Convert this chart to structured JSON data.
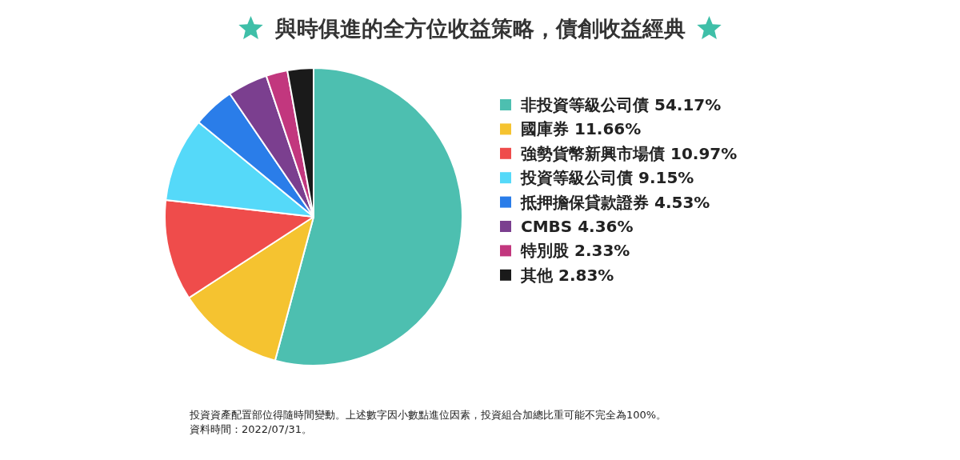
{
  "chart_data": {
    "type": "pie",
    "title": "與時俱進的全方位收益策略，債創收益經典",
    "categories": [
      "非投資等級公司債",
      "國庫券",
      "強勢貨幣新興市場債",
      "投資等級公司債",
      "抵押擔保貸款證券",
      "CMBS",
      "特別股",
      "其他"
    ],
    "values": [
      54.17,
      11.66,
      10.97,
      9.15,
      4.53,
      4.36,
      2.33,
      2.83
    ],
    "value_labels": [
      "54.17%",
      "11.66%",
      "10.97%",
      "9.15%",
      "4.53%",
      "4.36%",
      "2.33%",
      "2.83%"
    ],
    "colors": [
      "#4dbfb0",
      "#f5c330",
      "#ef4c4b",
      "#55d9f9",
      "#2a7de9",
      "#7b3f8f",
      "#c2377e",
      "#1a1a1a"
    ],
    "legend": "right",
    "annotations": [
      "投資資產配置部位得隨時間變動。上述數字因小數點進位因素，投資組合加總比重可能不完全為100%。",
      "資料時間：2022/07/31。"
    ]
  }
}
